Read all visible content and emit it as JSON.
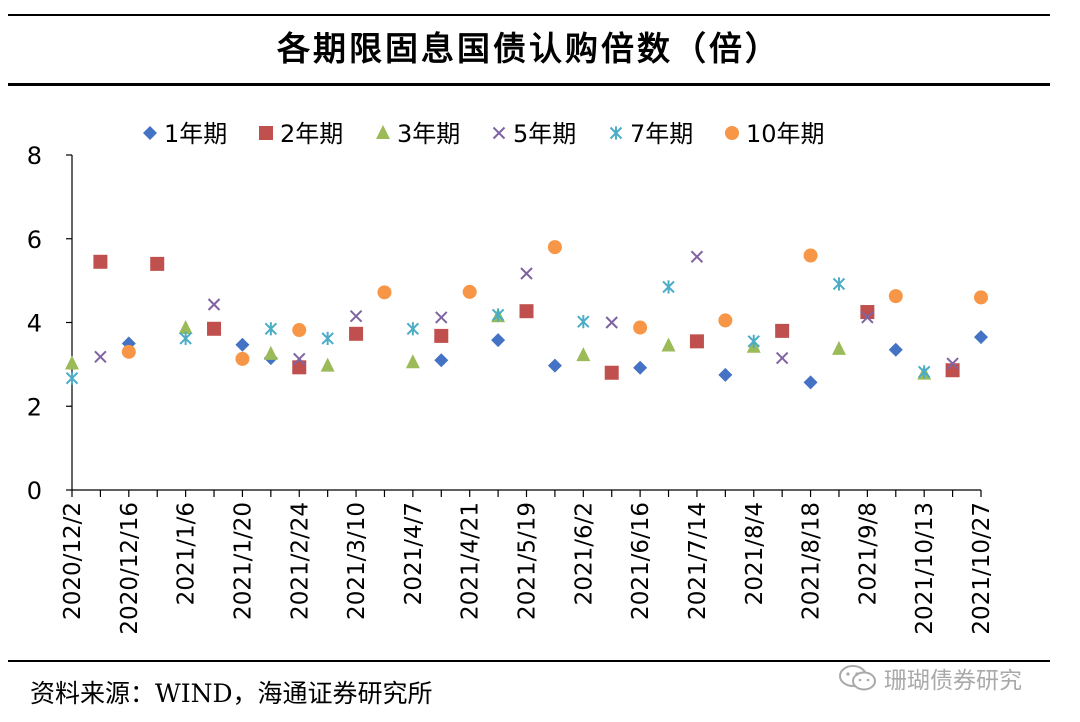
{
  "title": "各期限固息国债认购倍数（倍）",
  "source": "资料来源：WIND，海通证券研究所",
  "watermark": "珊瑚债券研究",
  "colors": {
    "1y": "#4472C4",
    "2y": "#C0504D",
    "3y": "#9BBB59",
    "5y": "#8064A2",
    "7y": "#4BACC6",
    "10y": "#F79646"
  },
  "chart_data": {
    "type": "scatter",
    "title": "各期限固息国债认购倍数（倍）",
    "xlabel": "",
    "ylabel": "",
    "ylim": [
      0,
      8
    ],
    "yticks": [
      0,
      2,
      4,
      6,
      8
    ],
    "x": [
      "2020/12/2",
      "2020/12/9",
      "2020/12/16",
      "2020/12/23",
      "2021/1/6",
      "2021/1/13",
      "2021/1/20",
      "2021/1/27",
      "2021/2/24",
      "2021/3/3",
      "2021/3/10",
      "2021/3/24",
      "2021/4/7",
      "2021/4/14",
      "2021/4/21",
      "2021/5/12",
      "2021/5/19",
      "2021/5/26",
      "2021/6/2",
      "2021/6/9",
      "2021/6/16",
      "2021/7/7",
      "2021/7/14",
      "2021/7/28",
      "2021/8/4",
      "2021/8/11",
      "2021/8/18",
      "2021/9/1",
      "2021/9/8",
      "2021/9/15",
      "2021/10/13",
      "2021/10/20",
      "2021/10/27"
    ],
    "x_tick_labels": [
      "2020/12/2",
      "2020/12/16",
      "2021/1/6",
      "2021/1/20",
      "2021/2/24",
      "2021/3/10",
      "2021/4/7",
      "2021/4/21",
      "2021/5/19",
      "2021/6/2",
      "2021/6/16",
      "2021/7/14",
      "2021/8/4",
      "2021/8/18",
      "2021/9/8",
      "2021/10/13",
      "2021/10/27"
    ],
    "x_tick_indices": [
      0,
      2,
      4,
      6,
      8,
      10,
      12,
      14,
      16,
      18,
      20,
      22,
      24,
      26,
      28,
      30,
      32
    ],
    "legend_position": "top",
    "series": [
      {
        "key": "1y",
        "name": "1年期",
        "marker": "diamond",
        "points": [
          [
            2,
            3.5
          ],
          [
            6,
            3.47
          ],
          [
            7,
            3.15
          ],
          [
            13,
            3.1
          ],
          [
            15,
            3.58
          ],
          [
            17,
            2.97
          ],
          [
            20,
            2.92
          ],
          [
            23,
            2.75
          ],
          [
            26,
            2.57
          ],
          [
            29,
            3.35
          ],
          [
            32,
            3.65
          ]
        ]
      },
      {
        "key": "2y",
        "name": "2年期",
        "marker": "square",
        "points": [
          [
            1,
            5.45
          ],
          [
            3,
            5.4
          ],
          [
            5,
            3.85
          ],
          [
            8,
            2.93
          ],
          [
            10,
            3.73
          ],
          [
            13,
            3.68
          ],
          [
            16,
            4.27
          ],
          [
            19,
            2.8
          ],
          [
            22,
            3.55
          ],
          [
            25,
            3.8
          ],
          [
            28,
            4.25
          ],
          [
            31,
            2.86
          ]
        ]
      },
      {
        "key": "3y",
        "name": "3年期",
        "marker": "triangle",
        "points": [
          [
            0,
            3.02
          ],
          [
            4,
            3.87
          ],
          [
            7,
            3.25
          ],
          [
            9,
            2.97
          ],
          [
            12,
            3.05
          ],
          [
            15,
            4.15
          ],
          [
            18,
            3.22
          ],
          [
            21,
            3.45
          ],
          [
            24,
            3.42
          ],
          [
            27,
            3.37
          ],
          [
            30,
            2.78
          ]
        ]
      },
      {
        "key": "5y",
        "name": "5年期",
        "marker": "x",
        "points": [
          [
            1,
            3.18
          ],
          [
            5,
            4.43
          ],
          [
            8,
            3.13
          ],
          [
            10,
            4.15
          ],
          [
            13,
            4.12
          ],
          [
            16,
            5.17
          ],
          [
            19,
            4.0
          ],
          [
            22,
            5.57
          ],
          [
            25,
            3.15
          ],
          [
            28,
            4.12
          ],
          [
            31,
            3.02
          ]
        ]
      },
      {
        "key": "7y",
        "name": "7年期",
        "marker": "star",
        "points": [
          [
            0,
            2.67
          ],
          [
            4,
            3.62
          ],
          [
            7,
            3.85
          ],
          [
            9,
            3.62
          ],
          [
            12,
            3.85
          ],
          [
            15,
            4.18
          ],
          [
            18,
            4.02
          ],
          [
            21,
            4.85
          ],
          [
            24,
            3.55
          ],
          [
            27,
            4.92
          ],
          [
            30,
            2.82
          ]
        ]
      },
      {
        "key": "10y",
        "name": "10年期",
        "marker": "circle",
        "points": [
          [
            2,
            3.3
          ],
          [
            6,
            3.13
          ],
          [
            8,
            3.82
          ],
          [
            11,
            4.72
          ],
          [
            14,
            4.73
          ],
          [
            17,
            5.8
          ],
          [
            20,
            3.88
          ],
          [
            23,
            4.05
          ],
          [
            26,
            5.6
          ],
          [
            29,
            4.63
          ],
          [
            32,
            4.6
          ]
        ]
      }
    ]
  }
}
